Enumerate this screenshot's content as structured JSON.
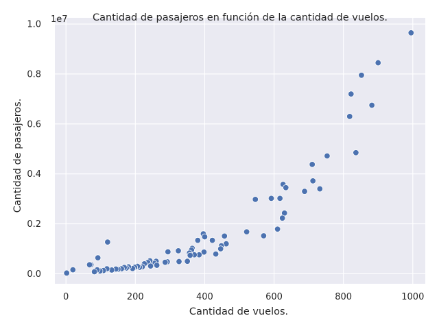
{
  "chart_data": {
    "type": "scatter",
    "title": "Cantidad de pasajeros en función de la cantidad de vuelos.",
    "xlabel": "Cantidad de vuelos.",
    "ylabel": "Cantidad de pasajeros.",
    "y_offset_label": "1e7",
    "xlim": [
      -32,
      1036
    ],
    "ylim": [
      -400000,
      10250000
    ],
    "x_ticks": [
      0,
      200,
      400,
      600,
      800,
      1000
    ],
    "x_tick_labels": [
      "0",
      "200",
      "400",
      "600",
      "800",
      "1000"
    ],
    "y_ticks": [
      0,
      2000000,
      4000000,
      6000000,
      8000000,
      10000000
    ],
    "y_tick_labels": [
      "0.0",
      "0.2",
      "0.4",
      "0.6",
      "0.8",
      "1.0"
    ],
    "grid": true,
    "colors": {
      "background": "#eaeaf2",
      "grid": "#ffffff",
      "marker": "#4c72b0",
      "text": "#262626"
    },
    "x": [
      995,
      900,
      852,
      822,
      818,
      882,
      836,
      753,
      710,
      712,
      732,
      688,
      626,
      634,
      617,
      630,
      624,
      610,
      592,
      546,
      570,
      521,
      457,
      396,
      400,
      380,
      422,
      462,
      448,
      446,
      432,
      398,
      384,
      364,
      362,
      356,
      370,
      358,
      350,
      324,
      326,
      294,
      292,
      286,
      260,
      254,
      262,
      242,
      236,
      244,
      226,
      220,
      212,
      206,
      198,
      192,
      180,
      174,
      168,
      160,
      150,
      144,
      132,
      120,
      118,
      108,
      98,
      92,
      90,
      82,
      72,
      68,
      20,
      2
    ],
    "y": [
      9650000,
      8450000,
      7950000,
      7200000,
      6300000,
      6750000,
      4850000,
      4720000,
      4380000,
      3720000,
      3400000,
      3300000,
      3580000,
      3450000,
      3020000,
      2430000,
      2230000,
      1790000,
      3020000,
      2980000,
      1520000,
      1680000,
      1510000,
      1600000,
      1480000,
      1340000,
      1340000,
      1200000,
      1120000,
      1000000,
      790000,
      870000,
      760000,
      1020000,
      950000,
      830000,
      760000,
      740000,
      500000,
      920000,
      490000,
      880000,
      480000,
      460000,
      500000,
      420000,
      340000,
      520000,
      450000,
      310000,
      400000,
      280000,
      260000,
      300000,
      260000,
      210000,
      280000,
      230000,
      250000,
      200000,
      180000,
      190000,
      150000,
      1270000,
      200000,
      130000,
      110000,
      640000,
      160000,
      80000,
      360000,
      360000,
      160000,
      30000
    ]
  }
}
